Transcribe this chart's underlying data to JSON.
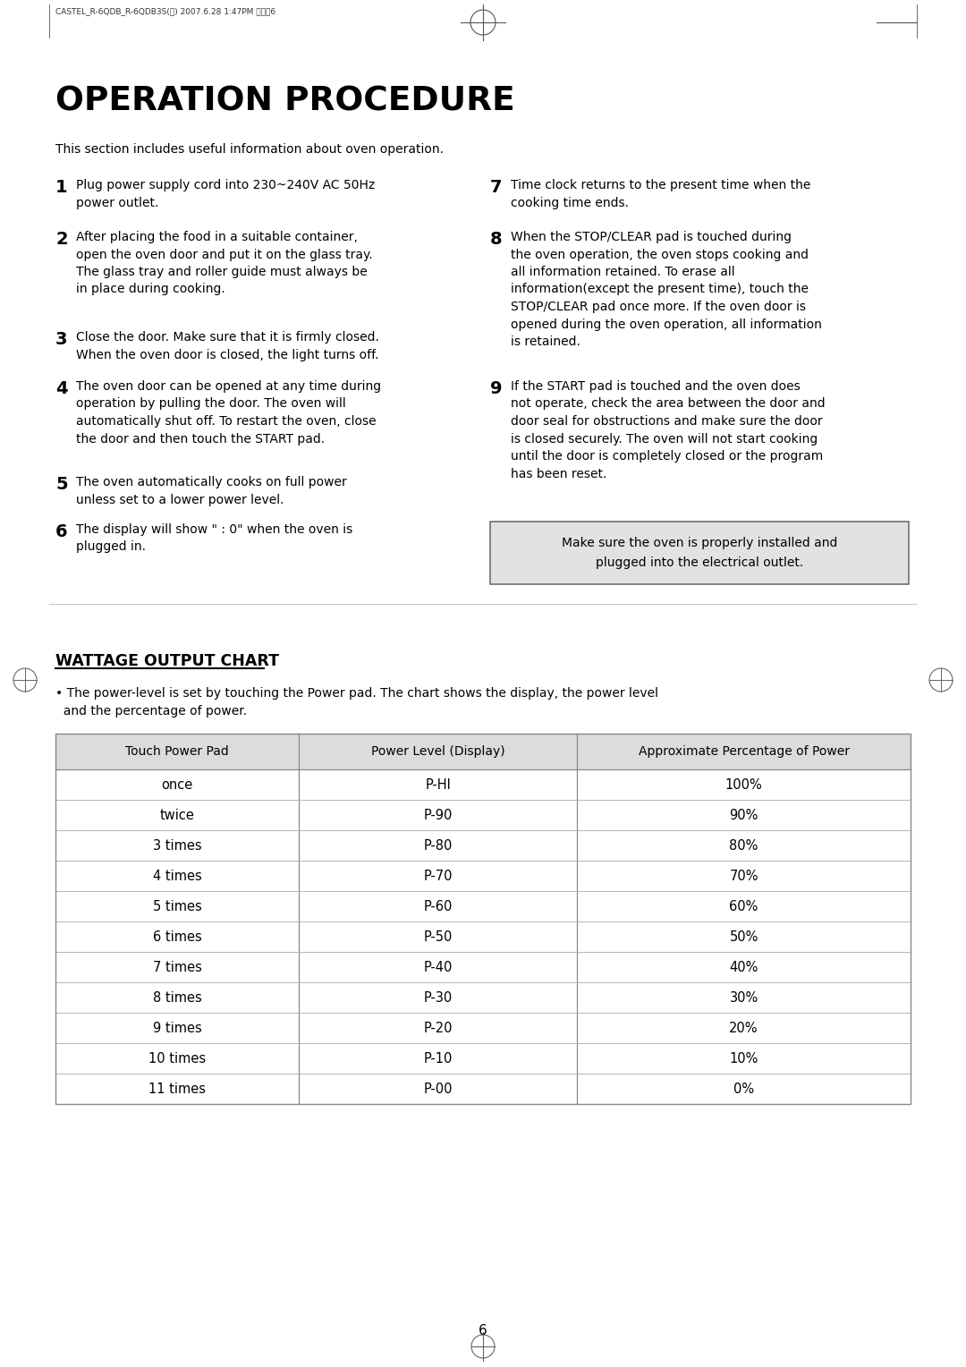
{
  "page_header": "CASTEL_R-6QDB_R-6QDB3S(영) 2007.6.28 1:47PM 페이직6",
  "main_title": "OPERATION PROCEDURE",
  "intro_text": "This section includes useful information about oven operation.",
  "steps_left": [
    {
      "num": "1",
      "text": "Plug power supply cord into 230~240V AC 50Hz\npower outlet."
    },
    {
      "num": "2",
      "text": "After placing the food in a suitable container,\nopen the oven door and put it on the glass tray.\nThe glass tray and roller guide must always be\nin place during cooking."
    },
    {
      "num": "3",
      "text": "Close the door. Make sure that it is firmly closed.\nWhen the oven door is closed, the light turns off."
    },
    {
      "num": "4",
      "text": "The oven door can be opened at any time during\noperation by pulling the door. The oven will\nautomatically shut off. To restart the oven, close\nthe door and then touch the START pad."
    },
    {
      "num": "5",
      "text": "The oven automatically cooks on full power\nunless set to a lower power level."
    },
    {
      "num": "6",
      "text": "The display will show \" : 0\" when the oven is\nplugged in."
    }
  ],
  "steps_right": [
    {
      "num": "7",
      "text": "Time clock returns to the present time when the\ncooking time ends."
    },
    {
      "num": "8",
      "text": "When the STOP/CLEAR pad is touched during\nthe oven operation, the oven stops cooking and\nall information retained. To erase all\ninformation(except the present time), touch the\nSTOP/CLEAR pad once more. If the oven door is\nopened during the oven operation, all information\nis retained."
    },
    {
      "num": "9",
      "text": "If the START pad is touched and the oven does\nnot operate, check the area between the door and\ndoor seal for obstructions and make sure the door\nis closed securely. The oven will not start cooking\nuntil the door is completely closed or the program\nhas been reset."
    }
  ],
  "note_text": "Make sure the oven is properly installed and\nplugged into the electrical outlet.",
  "wattage_title": "WATTAGE OUTPUT CHART",
  "wattage_intro": "• The power-level is set by touching the Power pad. The chart shows the display, the power level\n  and the percentage of power.",
  "table_headers": [
    "Touch Power Pad",
    "Power Level (Display)",
    "Approximate Percentage of Power"
  ],
  "table_rows": [
    [
      "once",
      "P-HI",
      "100%"
    ],
    [
      "twice",
      "P-90",
      "90%"
    ],
    [
      "3 times",
      "P-80",
      "80%"
    ],
    [
      "4 times",
      "P-70",
      "70%"
    ],
    [
      "5 times",
      "P-60",
      "60%"
    ],
    [
      "6 times",
      "P-50",
      "50%"
    ],
    [
      "7 times",
      "P-40",
      "40%"
    ],
    [
      "8 times",
      "P-30",
      "30%"
    ],
    [
      "9 times",
      "P-20",
      "20%"
    ],
    [
      "10 times",
      "P-10",
      "10%"
    ],
    [
      "11 times",
      "P-00",
      "0%"
    ]
  ],
  "page_number": "6",
  "bg_color": "#ffffff",
  "text_color": "#000000",
  "header_bg": "#e0e0e0",
  "note_bg": "#e0e0e0",
  "table_line_color": "#888888"
}
